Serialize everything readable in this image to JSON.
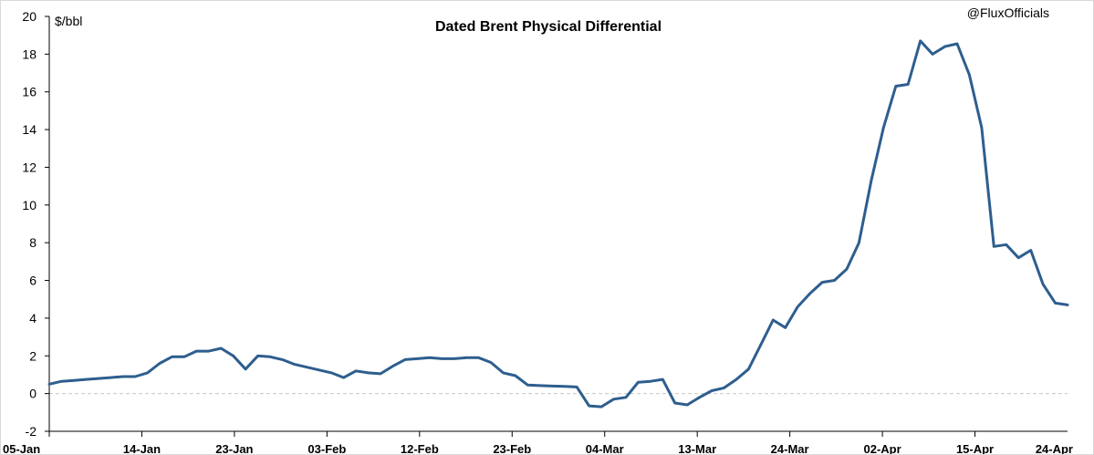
{
  "chart_data": {
    "type": "line",
    "title": "Dated Brent Physical Differential",
    "unit_label": "$/bbl",
    "credit": "@FluxOfficials",
    "ylim": [
      -2,
      20
    ],
    "yticks": [
      -2,
      0,
      2,
      4,
      6,
      8,
      10,
      12,
      14,
      16,
      18,
      20
    ],
    "x_tick_labels": [
      "05-Jan",
      "14-Jan",
      "23-Jan",
      "03-Feb",
      "12-Feb",
      "23-Feb",
      "04-Mar",
      "13-Mar",
      "24-Mar",
      "02-Apr",
      "15-Apr",
      "24-Apr"
    ],
    "zero_line": "dashed",
    "grid": false,
    "line_color": "#2e5e8e",
    "values": [
      0.5,
      0.65,
      0.7,
      0.75,
      0.8,
      0.85,
      0.9,
      0.9,
      1.1,
      1.6,
      1.95,
      1.95,
      2.25,
      2.25,
      2.4,
      2.0,
      1.3,
      2.0,
      1.95,
      1.8,
      1.55,
      1.4,
      1.25,
      1.1,
      0.85,
      1.2,
      1.1,
      1.05,
      1.45,
      1.8,
      1.85,
      1.9,
      1.85,
      1.85,
      1.9,
      1.9,
      1.65,
      1.1,
      0.95,
      0.45,
      0.42,
      0.4,
      0.38,
      0.35,
      -0.65,
      -0.7,
      -0.3,
      -0.2,
      0.6,
      0.65,
      0.75,
      -0.5,
      -0.6,
      -0.2,
      0.15,
      0.3,
      0.75,
      1.3,
      2.6,
      3.9,
      3.5,
      4.6,
      5.3,
      5.9,
      6.0,
      6.6,
      8.0,
      11.3,
      14.1,
      16.3,
      16.4,
      18.7,
      18.0,
      18.4,
      18.55,
      16.9,
      14.1,
      7.8,
      7.9,
      7.2,
      7.6,
      5.8,
      4.8,
      4.7
    ]
  }
}
